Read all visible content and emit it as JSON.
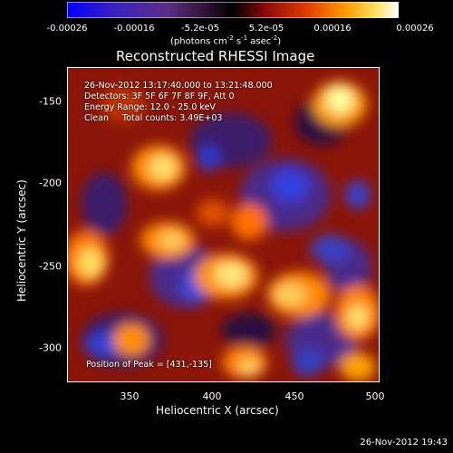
{
  "colorbar": {
    "ticks": [
      "-0.00026",
      "-0.00016",
      "-5.2e-05",
      "5.2e-05",
      "0.00016",
      "0.00026"
    ],
    "unit_main": "(photons cm",
    "unit_sup1": "-2",
    "unit_mid1": " s",
    "unit_sup2": "-1",
    "unit_mid2": " asec",
    "unit_sup3": "-2",
    "unit_end": ")",
    "colors": [
      "#0000ff",
      "#3020b0",
      "#5a2a80",
      "#2a0f2e",
      "#000000",
      "#8a0d0d",
      "#e03a00",
      "#ff9000",
      "#ffe060",
      "#ffffff"
    ]
  },
  "title": "Reconstructed RHESSI Image",
  "info": {
    "line1": "26-Nov-2012 13:17:40.000 to 13:21:48.000",
    "line2": "Detectors: 3F 5F 6F 7F 8F 9F, Att 0",
    "line3": "Energy Range: 12.0 - 25.0 keV",
    "line4": "Clean     Total counts: 3.49E+03",
    "peak": "Position of Peak = [431,-135]"
  },
  "axes": {
    "xlabel": "Heliocentric X (arcsec)",
    "ylabel": "Heliocentric Y (arcsec)",
    "xticks": [
      "350",
      "400",
      "450",
      "500"
    ],
    "yticks": [
      "-150",
      "-200",
      "-250",
      "-300"
    ]
  },
  "timestamp": "26-Nov-2012 19:43"
}
